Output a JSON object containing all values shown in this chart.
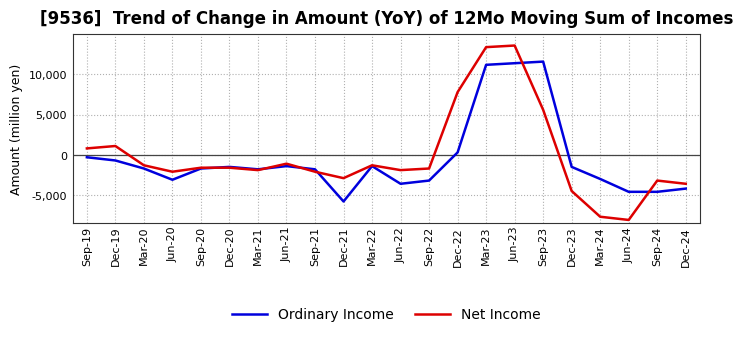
{
  "title": "[9536]  Trend of Change in Amount (YoY) of 12Mo Moving Sum of Incomes",
  "ylabel": "Amount (million yen)",
  "background_color": "#ffffff",
  "plot_bg_color": "#ffffff",
  "grid_color": "#b0b0b0",
  "x_labels": [
    "Sep-19",
    "Dec-19",
    "Mar-20",
    "Jun-20",
    "Sep-20",
    "Dec-20",
    "Mar-21",
    "Jun-21",
    "Sep-21",
    "Dec-21",
    "Mar-22",
    "Jun-22",
    "Sep-22",
    "Dec-22",
    "Mar-23",
    "Jun-23",
    "Sep-23",
    "Dec-23",
    "Mar-24",
    "Jun-24",
    "Sep-24",
    "Dec-24"
  ],
  "ordinary_income": [
    -300,
    -700,
    -1700,
    -3100,
    -1700,
    -1500,
    -1800,
    -1400,
    -1800,
    -5800,
    -1400,
    -3600,
    -3200,
    300,
    11200,
    11400,
    11600,
    -1500,
    -3000,
    -4600,
    -4600,
    -4200
  ],
  "net_income": [
    800,
    1100,
    -1300,
    -2100,
    -1600,
    -1600,
    -1900,
    -1100,
    -2100,
    -2900,
    -1300,
    -1900,
    -1700,
    7800,
    13400,
    13600,
    5600,
    -4500,
    -7700,
    -8100,
    -3200,
    -3600
  ],
  "ordinary_color": "#0000dd",
  "net_color": "#dd0000",
  "ylim": [
    -8500,
    15000
  ],
  "yticks": [
    -5000,
    0,
    5000,
    10000
  ],
  "line_width": 1.8,
  "title_fontsize": 12,
  "tick_fontsize": 8,
  "ylabel_fontsize": 9,
  "legend_labels": [
    "Ordinary Income",
    "Net Income"
  ]
}
